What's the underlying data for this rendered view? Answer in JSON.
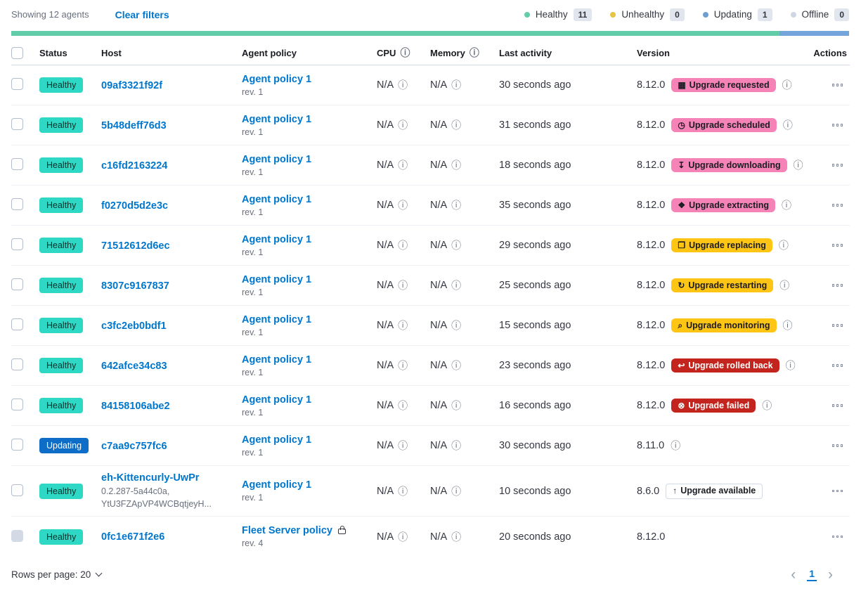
{
  "icons": {
    "info": "ⓘ",
    "previous": "‹",
    "next": "›"
  },
  "palette": {
    "link_blue": "#0077cc",
    "healthy_badge": "#2fd8c5",
    "updating_badge": "#0e6dc7",
    "upgrade_pink": "#f583b7",
    "upgrade_yellow": "#fec514",
    "upgrade_red": "#c3241d",
    "bar_green": "#63cca9",
    "bar_blue": "#73a5da"
  },
  "toolbar": {
    "showing": "Showing 12 agents",
    "clear_filters": "Clear filters",
    "legend": [
      {
        "label": "Healthy",
        "count": "11",
        "color": "#63cca9"
      },
      {
        "label": "Unhealthy",
        "count": "0",
        "color": "#e4c441"
      },
      {
        "label": "Updating",
        "count": "1",
        "color": "#6d9fd3"
      },
      {
        "label": "Offline",
        "count": "0",
        "color": "#cfd6e3"
      }
    ]
  },
  "progress_bar": {
    "segments": [
      {
        "name": "healthy",
        "color": "#63cca9",
        "percent": 91.7
      },
      {
        "name": "updating",
        "color": "#73a5da",
        "percent": 8.3
      }
    ]
  },
  "table": {
    "headers": {
      "status": "Status",
      "host": "Host",
      "policy": "Agent policy",
      "cpu": "CPU",
      "memory": "Memory",
      "last_activity": "Last activity",
      "version": "Version",
      "actions": "Actions"
    },
    "rows": [
      {
        "status": {
          "label": "Healthy",
          "type": "healthy"
        },
        "host": {
          "name": "09af3321f92f"
        },
        "policy": {
          "name": "Agent policy 1",
          "rev": "rev. 1"
        },
        "cpu": "N/A",
        "memory": "N/A",
        "last_activity": "30 seconds ago",
        "version": "8.12.0",
        "upgrade": {
          "label": "Upgrade requested",
          "glyph": "▦",
          "icon": "calendar-icon",
          "type": "pink"
        },
        "version_info": true
      },
      {
        "status": {
          "label": "Healthy",
          "type": "healthy"
        },
        "host": {
          "name": "5b48deff76d3"
        },
        "policy": {
          "name": "Agent policy 1",
          "rev": "rev. 1"
        },
        "cpu": "N/A",
        "memory": "N/A",
        "last_activity": "31 seconds ago",
        "version": "8.12.0",
        "upgrade": {
          "label": "Upgrade scheduled",
          "glyph": "◷",
          "icon": "clock-icon",
          "type": "pink"
        },
        "version_info": true
      },
      {
        "status": {
          "label": "Healthy",
          "type": "healthy"
        },
        "host": {
          "name": "c16fd2163224"
        },
        "policy": {
          "name": "Agent policy 1",
          "rev": "rev. 1"
        },
        "cpu": "N/A",
        "memory": "N/A",
        "last_activity": "18 seconds ago",
        "version": "8.12.0",
        "upgrade": {
          "label": "Upgrade downloading",
          "glyph": "↧",
          "icon": "download-icon",
          "type": "pink"
        },
        "version_info": true
      },
      {
        "status": {
          "label": "Healthy",
          "type": "healthy"
        },
        "host": {
          "name": "f0270d5d2e3c"
        },
        "policy": {
          "name": "Agent policy 1",
          "rev": "rev. 1"
        },
        "cpu": "N/A",
        "memory": "N/A",
        "last_activity": "35 seconds ago",
        "version": "8.12.0",
        "upgrade": {
          "label": "Upgrade extracting",
          "glyph": "❖",
          "icon": "package-icon",
          "type": "pink"
        },
        "version_info": true
      },
      {
        "status": {
          "label": "Healthy",
          "type": "healthy"
        },
        "host": {
          "name": "71512612d6ec"
        },
        "policy": {
          "name": "Agent policy 1",
          "rev": "rev. 1"
        },
        "cpu": "N/A",
        "memory": "N/A",
        "last_activity": "29 seconds ago",
        "version": "8.12.0",
        "upgrade": {
          "label": "Upgrade replacing",
          "glyph": "❐",
          "icon": "document-icon",
          "type": "yellow"
        },
        "version_info": true
      },
      {
        "status": {
          "label": "Healthy",
          "type": "healthy"
        },
        "host": {
          "name": "8307c9167837"
        },
        "policy": {
          "name": "Agent policy 1",
          "rev": "rev. 1"
        },
        "cpu": "N/A",
        "memory": "N/A",
        "last_activity": "25 seconds ago",
        "version": "8.12.0",
        "upgrade": {
          "label": "Upgrade restarting",
          "glyph": "↻",
          "icon": "refresh-icon",
          "type": "yellow"
        },
        "version_info": true
      },
      {
        "status": {
          "label": "Healthy",
          "type": "healthy"
        },
        "host": {
          "name": "c3fc2eb0bdf1"
        },
        "policy": {
          "name": "Agent policy 1",
          "rev": "rev. 1"
        },
        "cpu": "N/A",
        "memory": "N/A",
        "last_activity": "15 seconds ago",
        "version": "8.12.0",
        "upgrade": {
          "label": "Upgrade monitoring",
          "glyph": "⌕",
          "icon": "inspect-icon",
          "type": "yellow"
        },
        "version_info": true
      },
      {
        "status": {
          "label": "Healthy",
          "type": "healthy"
        },
        "host": {
          "name": "642afce34c83"
        },
        "policy": {
          "name": "Agent policy 1",
          "rev": "rev. 1"
        },
        "cpu": "N/A",
        "memory": "N/A",
        "last_activity": "23 seconds ago",
        "version": "8.12.0",
        "upgrade": {
          "label": "Upgrade rolled back",
          "glyph": "↩",
          "icon": "return-arrow-icon",
          "type": "red"
        },
        "version_info": true
      },
      {
        "status": {
          "label": "Healthy",
          "type": "healthy"
        },
        "host": {
          "name": "84158106abe2"
        },
        "policy": {
          "name": "Agent policy 1",
          "rev": "rev. 1"
        },
        "cpu": "N/A",
        "memory": "N/A",
        "last_activity": "16 seconds ago",
        "version": "8.12.0",
        "upgrade": {
          "label": "Upgrade failed",
          "glyph": "⊗",
          "icon": "error-icon",
          "type": "red"
        },
        "version_info": true
      },
      {
        "status": {
          "label": "Updating",
          "type": "updating"
        },
        "host": {
          "name": "c7aa9c757fc6"
        },
        "policy": {
          "name": "Agent policy 1",
          "rev": "rev. 1"
        },
        "cpu": "N/A",
        "memory": "N/A",
        "last_activity": "30 seconds ago",
        "version": "8.11.0",
        "upgrade": null,
        "version_info": true
      },
      {
        "status": {
          "label": "Healthy",
          "type": "healthy"
        },
        "host": {
          "name": "eh-Kittencurly-UwPr",
          "sub": "0.2.287-5a44c0a,\nYtU3FZApVP4WCBqtjeyH..."
        },
        "policy": {
          "name": "Agent policy 1",
          "rev": "rev. 1"
        },
        "cpu": "N/A",
        "memory": "N/A",
        "last_activity": "10 seconds ago",
        "version": "8.6.0",
        "upgrade": {
          "label": "Upgrade available",
          "glyph": "↑",
          "icon": "arrow-up-icon",
          "type": "outline"
        },
        "version_info": false
      },
      {
        "status": {
          "label": "Healthy",
          "type": "healthy"
        },
        "host": {
          "name": "0fc1e671f2e6"
        },
        "policy": {
          "name": "Fleet Server policy",
          "rev": "rev. 4",
          "locked": true
        },
        "cpu": "N/A",
        "memory": "N/A",
        "last_activity": "20 seconds ago",
        "version": "8.12.0",
        "upgrade": null,
        "version_info": false,
        "checkbox_disabled": true
      }
    ]
  },
  "footer": {
    "rows_per_page": "Rows per page: 20",
    "page": "1"
  }
}
